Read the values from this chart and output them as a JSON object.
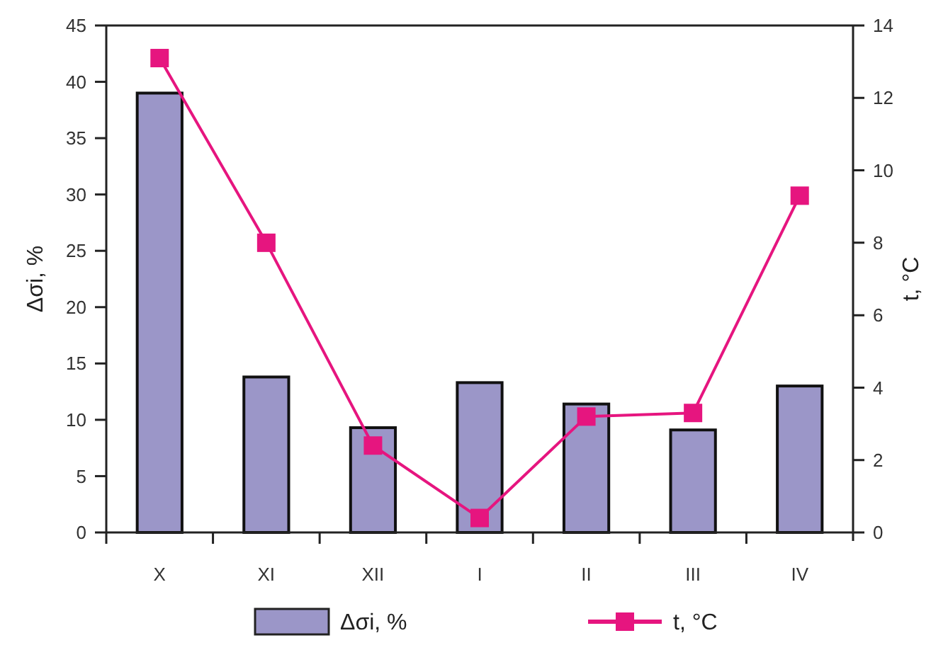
{
  "chart_data": {
    "type": "bar",
    "categories": [
      "X",
      "XI",
      "XII",
      "I",
      "II",
      "III",
      "IV"
    ],
    "ylabel": "Δσi, %",
    "y2label": "t, °C",
    "ylim": [
      0,
      45
    ],
    "yticks": [
      0,
      5,
      10,
      15,
      20,
      25,
      30,
      35,
      40,
      45
    ],
    "y2lim": [
      0,
      14
    ],
    "y2ticks": [
      0,
      2,
      4,
      6,
      8,
      10,
      12,
      14
    ],
    "legend": "bottom",
    "grid": false,
    "marker": "square",
    "series": [
      {
        "name": "Δσi, %",
        "color": "#9b96c8",
        "values": [
          39,
          13.8,
          9.3,
          13.3,
          11.4,
          9.1,
          13.0
        ]
      },
      {
        "name": "t, °C",
        "type": "line",
        "axis": "y2",
        "color": "#e6157f",
        "values": [
          13.1,
          8.0,
          2.4,
          0.4,
          3.2,
          3.3,
          9.3
        ]
      }
    ]
  }
}
